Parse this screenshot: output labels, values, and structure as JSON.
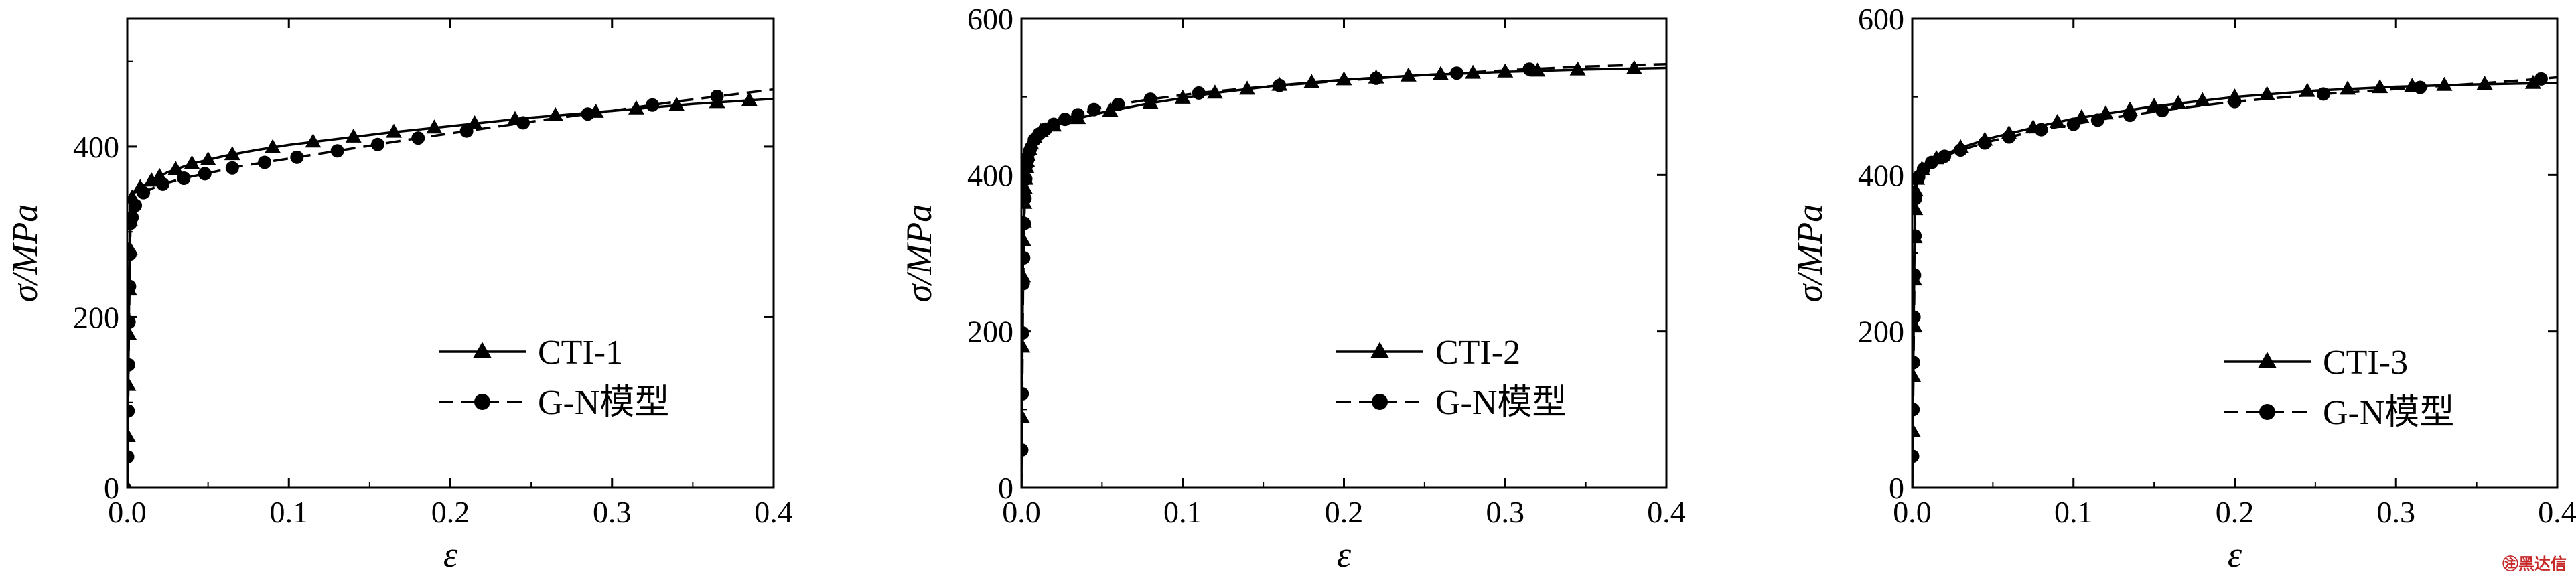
{
  "chart_data": [
    {
      "type": "line",
      "xlabel": "ε",
      "ylabel": "σ/MPa",
      "xlim": [
        0.0,
        0.4
      ],
      "ylim": [
        0,
        550
      ],
      "xticks": [
        0.0,
        0.1,
        0.2,
        0.3,
        0.4
      ],
      "xtick_labels": [
        "0.0",
        "0.1",
        "0.2",
        "0.3",
        "0.4"
      ],
      "yticks": [
        0,
        200,
        400
      ],
      "ytick_labels": [
        "0",
        "200",
        "400"
      ],
      "grid": false,
      "legend_position": "lower-right",
      "series": [
        {
          "name": "CTI-1",
          "style": "solid-triangle",
          "x": [
            0,
            0.0005,
            0.001,
            0.0015,
            0.002,
            0.004,
            0.008,
            0.015,
            0.025,
            0.04,
            0.06,
            0.08,
            0.1,
            0.13,
            0.16,
            0.2,
            0.25,
            0.3,
            0.35,
            0.4
          ],
          "y": [
            0,
            100,
            200,
            280,
            335,
            345,
            352,
            360,
            370,
            380,
            389,
            396,
            402,
            409,
            416,
            424,
            434,
            442,
            450,
            456
          ]
        },
        {
          "name": "G-N模型",
          "style": "dashed-circle",
          "x": [
            0,
            0.0005,
            0.001,
            0.0015,
            0.002,
            0.006,
            0.01,
            0.02,
            0.035,
            0.05,
            0.07,
            0.09,
            0.12,
            0.15,
            0.18,
            0.22,
            0.26,
            0.3,
            0.34,
            0.37,
            0.4
          ],
          "y": [
            0,
            90,
            180,
            250,
            310,
            338,
            346,
            355,
            363,
            369,
            377,
            383,
            392,
            401,
            410,
            421,
            432,
            442,
            453,
            460,
            467
          ]
        }
      ],
      "mark_x": {
        "CTI-1": [
          0,
          0.0003,
          0.0006,
          0.0009,
          0.0012,
          0.0015,
          0.0018,
          0.003,
          0.008,
          0.015,
          0.02,
          0.03,
          0.04,
          0.05,
          0.065,
          0.09,
          0.115,
          0.14,
          0.165,
          0.19,
          0.215,
          0.24,
          0.265,
          0.29,
          0.315,
          0.34,
          0.365,
          0.385
        ],
        "G-N模型": [
          0.0002,
          0.0005,
          0.0008,
          0.0011,
          0.0014,
          0.0017,
          0.002,
          0.003,
          0.005,
          0.01,
          0.022,
          0.035,
          0.048,
          0.065,
          0.085,
          0.105,
          0.13,
          0.155,
          0.18,
          0.21,
          0.245,
          0.285,
          0.325,
          0.365
        ]
      }
    },
    {
      "type": "line",
      "xlabel": "ε",
      "ylabel": "σ/MPa",
      "xlim": [
        0.0,
        0.4
      ],
      "ylim": [
        0,
        600
      ],
      "xticks": [
        0.0,
        0.1,
        0.2,
        0.3,
        0.4
      ],
      "xtick_labels": [
        "0.0",
        "0.1",
        "0.2",
        "0.3",
        "0.4"
      ],
      "yticks": [
        0,
        200,
        400,
        600
      ],
      "ytick_labels": [
        "0",
        "200",
        "400",
        "600"
      ],
      "grid": false,
      "legend_position": "lower-right",
      "series": [
        {
          "name": "CTI-2",
          "style": "solid-triangle",
          "x": [
            0,
            0.0005,
            0.001,
            0.002,
            0.003,
            0.004,
            0.006,
            0.008,
            0.012,
            0.02,
            0.03,
            0.05,
            0.08,
            0.12,
            0.16,
            0.2,
            0.25,
            0.3,
            0.35,
            0.4
          ],
          "y": [
            0,
            150,
            300,
            380,
            410,
            425,
            440,
            448,
            456,
            463,
            470,
            480,
            492,
            505,
            515,
            522,
            528,
            532,
            535,
            537
          ]
        },
        {
          "name": "G-N模型",
          "style": "dashed-circle",
          "x": [
            0,
            0.0005,
            0.001,
            0.002,
            0.003,
            0.005,
            0.008,
            0.012,
            0.02,
            0.03,
            0.05,
            0.08,
            0.11,
            0.15,
            0.2,
            0.25,
            0.3,
            0.35,
            0.4
          ],
          "y": [
            0,
            120,
            250,
            360,
            410,
            430,
            445,
            455,
            465,
            474,
            487,
            497,
            505,
            513,
            521,
            528,
            534,
            539,
            542
          ]
        }
      ],
      "mark_x": {
        "CTI-2": [
          0.0003,
          0.0006,
          0.0009,
          0.0012,
          0.0015,
          0.0018,
          0.0021,
          0.0025,
          0.003,
          0.0035,
          0.004,
          0.005,
          0.006,
          0.008,
          0.012,
          0.02,
          0.035,
          0.055,
          0.08,
          0.1,
          0.12,
          0.14,
          0.16,
          0.18,
          0.2,
          0.22,
          0.24,
          0.26,
          0.28,
          0.3,
          0.32,
          0.345,
          0.38
        ],
        "G-N模型": [
          0.0002,
          0.0005,
          0.0008,
          0.0011,
          0.0014,
          0.0018,
          0.0022,
          0.0027,
          0.0033,
          0.004,
          0.005,
          0.006,
          0.008,
          0.011,
          0.015,
          0.02,
          0.027,
          0.035,
          0.045,
          0.06,
          0.08,
          0.11,
          0.16,
          0.22,
          0.27,
          0.315
        ]
      }
    },
    {
      "type": "line",
      "xlabel": "ε",
      "ylabel": "σ/MPa",
      "xlim": [
        0.0,
        0.4
      ],
      "ylim": [
        0,
        600
      ],
      "xticks": [
        0.0,
        0.1,
        0.2,
        0.3,
        0.4
      ],
      "xtick_labels": [
        "0.0",
        "0.1",
        "0.2",
        "0.3",
        "0.4"
      ],
      "yticks": [
        0,
        200,
        400,
        600
      ],
      "ytick_labels": [
        "0",
        "200",
        "400",
        "600"
      ],
      "grid": false,
      "legend_position": "lower-right",
      "series": [
        {
          "name": "CTI-3",
          "style": "solid-triangle",
          "x": [
            0,
            0.0005,
            0.001,
            0.0015,
            0.002,
            0.003,
            0.005,
            0.008,
            0.012,
            0.02,
            0.03,
            0.05,
            0.08,
            0.1,
            0.15,
            0.2,
            0.25,
            0.3,
            0.35,
            0.4
          ],
          "y": [
            0,
            120,
            230,
            320,
            380,
            395,
            405,
            412,
            418,
            426,
            435,
            448,
            463,
            472,
            488,
            500,
            508,
            513,
            516,
            518
          ]
        },
        {
          "name": "G-N模型",
          "style": "dashed-circle",
          "x": [
            0,
            0.0005,
            0.001,
            0.0015,
            0.002,
            0.003,
            0.005,
            0.008,
            0.012,
            0.02,
            0.03,
            0.05,
            0.08,
            0.12,
            0.16,
            0.2,
            0.25,
            0.3,
            0.35,
            0.39,
            0.4
          ],
          "y": [
            0,
            100,
            200,
            290,
            370,
            392,
            403,
            410,
            416,
            424,
            432,
            444,
            458,
            472,
            484,
            494,
            503,
            510,
            517,
            523,
            525
          ]
        }
      ],
      "mark_x": {
        "CTI-3": [
          0.0003,
          0.0006,
          0.0009,
          0.0012,
          0.0015,
          0.0018,
          0.002,
          0.003,
          0.006,
          0.015,
          0.03,
          0.045,
          0.06,
          0.075,
          0.09,
          0.105,
          0.12,
          0.135,
          0.15,
          0.165,
          0.18,
          0.2,
          0.22,
          0.245,
          0.27,
          0.29,
          0.31,
          0.33,
          0.355,
          0.385
        ],
        "G-N模型": [
          0.0002,
          0.0005,
          0.0008,
          0.0011,
          0.0014,
          0.0017,
          0.002,
          0.004,
          0.007,
          0.012,
          0.02,
          0.03,
          0.045,
          0.06,
          0.08,
          0.1,
          0.115,
          0.135,
          0.155,
          0.2,
          0.255,
          0.315,
          0.39
        ]
      }
    }
  ],
  "watermark": "㊟黑达信",
  "colors": {
    "line": "#000000",
    "background": "#ffffff",
    "watermark": "#c62828"
  }
}
